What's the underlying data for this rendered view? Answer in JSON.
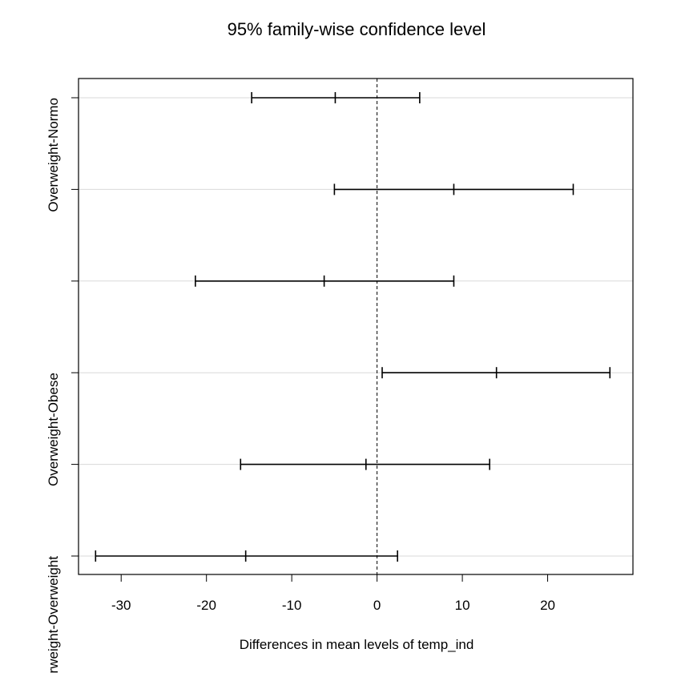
{
  "chart_data": {
    "type": "errorbar",
    "title": "95% family-wise confidence level",
    "xlabel": "Differences in mean levels of temp_ind",
    "ylabel": "",
    "xlim": [
      -35,
      30
    ],
    "xticks": [
      -30,
      -20,
      -10,
      0,
      10,
      20
    ],
    "xtick_labels": [
      "-30",
      "-20",
      "-10",
      "0",
      "10",
      "20"
    ],
    "reference_line": 0,
    "grid": "horizontal",
    "comparisons": [
      {
        "label": "Overweight-Normo",
        "lwr": -14.7,
        "diff": -4.9,
        "upr": 5.0
      },
      {
        "label": "",
        "lwr": -5.0,
        "diff": 9.0,
        "upr": 23.0
      },
      {
        "label": "",
        "lwr": -21.3,
        "diff": -6.2,
        "upr": 9.0
      },
      {
        "label": "Overweight-Obese",
        "lwr": 0.6,
        "diff": 14.0,
        "upr": 27.3
      },
      {
        "label": "",
        "lwr": -16.0,
        "diff": -1.3,
        "upr": 13.2
      },
      {
        "label": "Underweight-Overweight",
        "lwr": -33.0,
        "diff": -15.4,
        "upr": 2.4
      }
    ]
  }
}
